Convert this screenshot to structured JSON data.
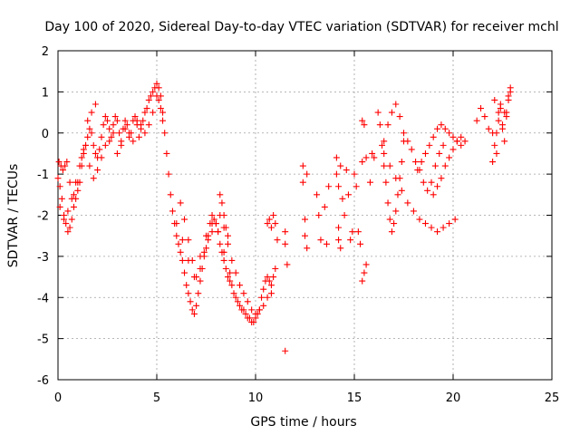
{
  "chart_data": {
    "type": "scatter",
    "title": "Day 100 of 2020, Sidereal Day-to-day VTEC variation (SDTVAR) for receiver mchl",
    "xlabel": "GPS time / hours",
    "ylabel": "SDTVAR / TECUs",
    "xlim": [
      0,
      25
    ],
    "ylim": [
      -6,
      2
    ],
    "xticks": [
      0,
      5,
      10,
      15,
      20,
      25
    ],
    "yticks": [
      -6,
      -5,
      -4,
      -3,
      -2,
      -1,
      0,
      1,
      2
    ],
    "grid": true,
    "marker": "+",
    "color": "#ff0000",
    "series": [
      {
        "name": "SDTVAR",
        "x": [
          0.0,
          0.1,
          0.2,
          0.3,
          0.4,
          0.5,
          0.6,
          0.7,
          0.8,
          0.9,
          1.0,
          1.1,
          1.2,
          1.3,
          1.4,
          1.5,
          1.6,
          1.7,
          1.8,
          1.9,
          2.0,
          2.1,
          2.2,
          2.3,
          2.4,
          2.5,
          2.6,
          2.7,
          2.8,
          2.9,
          3.0,
          3.1,
          3.2,
          3.3,
          3.4,
          3.5,
          3.6,
          3.7,
          3.8,
          3.9,
          4.0,
          4.1,
          4.2,
          4.3,
          4.4,
          4.5,
          4.6,
          4.7,
          4.8,
          4.9,
          5.0,
          5.1,
          5.2,
          5.3,
          5.4,
          5.5,
          5.6,
          5.7,
          5.8,
          5.9,
          6.0,
          6.1,
          6.2,
          6.3,
          6.4,
          6.5,
          6.6,
          6.7,
          6.8,
          6.9,
          7.0,
          7.1,
          7.2,
          7.3,
          7.4,
          7.5,
          7.6,
          7.7,
          7.8,
          7.9,
          8.0,
          8.1,
          8.2,
          8.3,
          8.4,
          8.5,
          8.6,
          8.7,
          8.8,
          8.9,
          9.0,
          9.1,
          9.2,
          9.3,
          9.4,
          9.5,
          9.6,
          9.7,
          9.8,
          9.9,
          10.0,
          10.1,
          10.2,
          10.3,
          10.4,
          10.5,
          10.6,
          10.7,
          10.8,
          10.9,
          11.0,
          0.05,
          0.15,
          0.25,
          0.35,
          0.45,
          0.6,
          0.8,
          1.0,
          1.2,
          1.4,
          1.6,
          1.8,
          2.0,
          2.2,
          2.4,
          2.6,
          2.8,
          3.0,
          3.2,
          3.4,
          3.6,
          3.8,
          4.0,
          4.2,
          4.4,
          4.6,
          4.8,
          5.0,
          5.1,
          5.2,
          5.3,
          0.1,
          0.3,
          0.5,
          0.7,
          0.9,
          1.1,
          1.3,
          1.5,
          1.7,
          1.9,
          6.2,
          6.4,
          6.6,
          6.8,
          7.0,
          7.2,
          7.4,
          7.6,
          7.8,
          8.0,
          8.2,
          8.4,
          8.6,
          8.8,
          9.0,
          9.2,
          9.4,
          9.6,
          9.8,
          10.0,
          10.2,
          10.4,
          10.6,
          10.8,
          6.0,
          6.3,
          6.6,
          6.9,
          7.2,
          7.5,
          7.8,
          8.1,
          8.4,
          8.7,
          8.2,
          8.3,
          8.4,
          8.5,
          8.6,
          10.6,
          10.7,
          10.8,
          10.9,
          11.0,
          11.1,
          11.5,
          11.5,
          11.6,
          11.5,
          12.4,
          12.4,
          12.5,
          12.5,
          12.6,
          12.6,
          13.1,
          13.2,
          13.3,
          13.5,
          13.6,
          13.7,
          14.1,
          14.1,
          14.2,
          14.2,
          14.2,
          14.3,
          14.3,
          14.4,
          14.5,
          14.6,
          14.7,
          14.8,
          14.9,
          15.0,
          15.1,
          15.2,
          15.3,
          15.4,
          15.5,
          15.4,
          15.5,
          15.6,
          15.8,
          15.9,
          16.0,
          15.4,
          15.6,
          16.2,
          16.3,
          16.4,
          16.5,
          16.6,
          16.7,
          16.8,
          16.9,
          17.0,
          17.1,
          17.2,
          17.3,
          17.4,
          17.5,
          16.5,
          16.7,
          16.9,
          17.1,
          17.3,
          17.5,
          17.7,
          17.9,
          18.1,
          18.3,
          18.5,
          18.7,
          18.9,
          19.1,
          19.3,
          19.5,
          16.5,
          16.8,
          17.1,
          17.4,
          17.7,
          18.0,
          18.3,
          18.6,
          18.9,
          19.2,
          19.5,
          19.8,
          20.1,
          18.2,
          18.4,
          18.6,
          18.8,
          19.0,
          19.2,
          19.4,
          19.6,
          19.8,
          20.0,
          20.2,
          20.4,
          20.6,
          19.0,
          19.2,
          19.4,
          19.6,
          19.8,
          20.0,
          20.2,
          20.4,
          21.2,
          21.4,
          21.6,
          21.8,
          22.0,
          22.2,
          22.4,
          22.6,
          22.8,
          22.9,
          22.0,
          22.1,
          22.2,
          22.3,
          22.4,
          22.5,
          22.6,
          22.7,
          22.8,
          22.9,
          22.1,
          22.3,
          22.5,
          22.7
        ],
        "y": [
          -1.1,
          -1.3,
          -1.6,
          -2.0,
          -2.2,
          -2.4,
          -2.3,
          -2.1,
          -1.8,
          -1.6,
          -1.4,
          -1.2,
          -0.8,
          -0.5,
          -0.3,
          -0.1,
          0.1,
          0.0,
          -0.3,
          -0.5,
          -0.6,
          -0.4,
          -0.1,
          0.2,
          0.4,
          0.3,
          0.1,
          -0.1,
          0.2,
          0.4,
          0.3,
          0.0,
          -0.2,
          0.1,
          0.3,
          0.2,
          -0.1,
          0.0,
          0.3,
          0.4,
          0.2,
          -0.1,
          0.1,
          0.3,
          0.5,
          0.6,
          0.8,
          0.9,
          1.0,
          1.1,
          1.2,
          1.1,
          0.9,
          0.5,
          0.0,
          -0.5,
          -1.0,
          -1.5,
          -1.9,
          -2.2,
          -2.5,
          -2.7,
          -2.9,
          -3.1,
          -3.4,
          -3.7,
          -3.9,
          -4.1,
          -4.3,
          -4.4,
          -4.2,
          -3.9,
          -3.6,
          -3.3,
          -3.0,
          -2.8,
          -2.5,
          -2.2,
          -2.0,
          -2.1,
          -2.2,
          -2.4,
          -2.7,
          -2.9,
          -3.1,
          -3.3,
          -3.5,
          -3.6,
          -3.7,
          -3.9,
          -4.0,
          -4.1,
          -4.2,
          -4.3,
          -4.3,
          -4.4,
          -4.5,
          -4.5,
          -4.6,
          -4.6,
          -4.5,
          -4.4,
          -4.3,
          -4.0,
          -3.8,
          -3.6,
          -3.5,
          -3.6,
          -3.7,
          -3.5,
          -3.3,
          -0.7,
          -0.8,
          -0.9,
          -0.8,
          -0.7,
          -1.2,
          -1.5,
          -1.2,
          -0.6,
          -0.3,
          -0.8,
          -1.1,
          -0.9,
          -0.6,
          -0.3,
          -0.2,
          0.0,
          -0.5,
          -0.3,
          0.1,
          0.0,
          -0.2,
          0.3,
          0.2,
          0.0,
          0.2,
          0.5,
          0.9,
          0.8,
          0.6,
          0.3,
          -1.8,
          -2.1,
          -1.9,
          -1.6,
          -1.2,
          -0.8,
          -0.4,
          0.3,
          0.5,
          0.7,
          -1.7,
          -2.1,
          -2.6,
          -3.1,
          -3.5,
          -3.3,
          -2.9,
          -2.6,
          -2.4,
          -2.2,
          -2.0,
          -2.3,
          -2.7,
          -3.1,
          -3.4,
          -3.7,
          -3.9,
          -4.1,
          -4.3,
          -4.4,
          -4.3,
          -4.2,
          -4.0,
          -3.9,
          -2.2,
          -2.6,
          -3.1,
          -3.5,
          -3.0,
          -2.5,
          -2.2,
          -2.4,
          -2.9,
          -3.4,
          -1.5,
          -1.7,
          -2.0,
          -2.3,
          -2.5,
          -2.2,
          -2.1,
          -2.3,
          -2.0,
          -2.2,
          -2.6,
          -2.4,
          -2.7,
          -3.2,
          -5.3,
          -0.8,
          -1.2,
          -2.1,
          -2.5,
          -2.8,
          -1.0,
          -1.5,
          -2.0,
          -2.6,
          -1.8,
          -2.7,
          -1.3,
          -0.6,
          -1.0,
          -1.3,
          -2.3,
          -2.6,
          -2.8,
          -0.8,
          -1.6,
          -2.0,
          -0.9,
          -1.5,
          -2.6,
          -2.4,
          -1.0,
          -1.3,
          -2.4,
          -2.7,
          -0.7,
          -3.4,
          0.3,
          0.2,
          -0.6,
          -1.2,
          -0.5,
          -0.6,
          -3.6,
          -3.2,
          0.5,
          0.2,
          -0.3,
          -0.8,
          -1.2,
          -1.7,
          -2.1,
          -2.4,
          -2.2,
          -1.9,
          -1.5,
          -1.1,
          -0.7,
          -0.2,
          -0.2,
          0.2,
          0.5,
          0.7,
          0.4,
          0.0,
          -0.2,
          -0.4,
          -0.7,
          -0.9,
          -1.2,
          -1.4,
          -1.2,
          -0.8,
          -0.5,
          -0.3,
          -0.5,
          -0.8,
          -1.1,
          -1.4,
          -1.7,
          -1.9,
          -2.1,
          -2.2,
          -2.3,
          -2.4,
          -2.3,
          -2.2,
          -2.1,
          -0.9,
          -0.7,
          -0.5,
          -0.3,
          -0.1,
          0.1,
          0.2,
          0.1,
          0.0,
          -0.1,
          -0.2,
          -0.3,
          -0.2,
          -1.5,
          -1.3,
          -1.1,
          -0.8,
          -0.6,
          -0.4,
          -0.2,
          -0.1,
          0.3,
          0.6,
          0.4,
          0.1,
          0.0,
          -0.5,
          0.7,
          0.5,
          0.9,
          1.0,
          -0.7,
          -0.3,
          0.0,
          0.3,
          0.6,
          0.2,
          -0.2,
          0.5,
          0.8,
          1.1,
          0.8,
          0.5,
          0.1,
          0.4
        ]
      }
    ]
  }
}
